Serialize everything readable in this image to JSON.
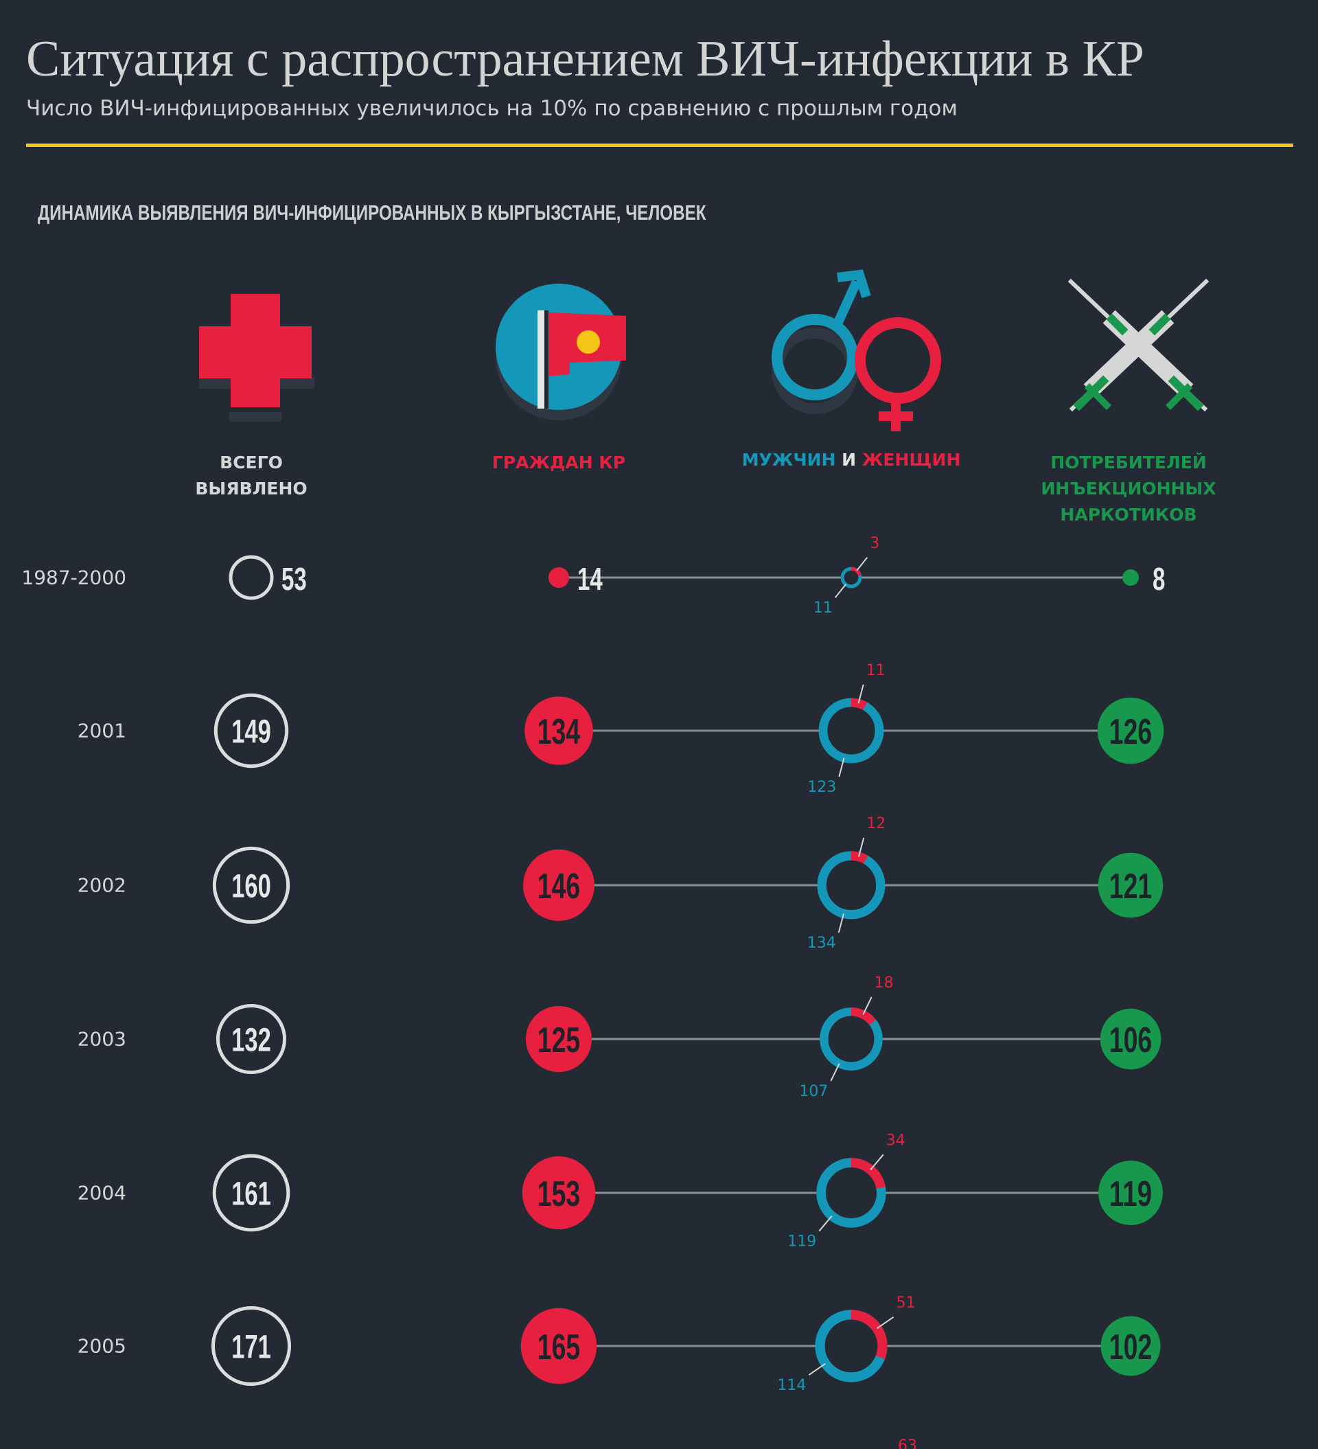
{
  "header": {
    "title": "Ситуация с распространением ВИЧ-инфекции в КР",
    "subtitle": "Число ВИЧ-инфицированных увеличилось на 10% по сравнению с прошлым годом"
  },
  "chart_data": {
    "type": "bubble-timeline",
    "title": "ДИНАМИКА ВЫЯВЛЕНИЯ ВИЧ-ИНФИЦИРОВАННЫХ В КЫРГЫЗСТАНЕ, ЧЕЛОВЕК",
    "columns": [
      {
        "key": "total",
        "label_lines": [
          "ВСЕГО",
          "ВЫЯВЛЕНО"
        ],
        "icon": "red-cross-icon",
        "color": "#d9d9d9"
      },
      {
        "key": "citizens",
        "label_lines": [
          "ГРАЖДАН КР"
        ],
        "icon": "kyrgyz-flag-icon",
        "color": "#e8203f"
      },
      {
        "key": "gender",
        "label_men": "МУЖЧИН",
        "label_and": "И",
        "label_women": "ЖЕНЩИН",
        "icon": "gender-symbols-icon"
      },
      {
        "key": "idu",
        "label_lines": [
          "ПОТРЕБИТЕЛЕЙ",
          "ИНЪЕКЦИОННЫХ",
          "НАРКОТИКОВ"
        ],
        "icon": "syringes-icon",
        "color": "#17984c"
      }
    ],
    "rows": [
      {
        "year": "1987-2000",
        "total": 53,
        "citizens": 14,
        "men": 11,
        "women": 3,
        "idu": 8
      },
      {
        "year": "2001",
        "total": 149,
        "citizens": 134,
        "men": 123,
        "women": 11,
        "idu": 126
      },
      {
        "year": "2002",
        "total": 160,
        "citizens": 146,
        "men": 134,
        "women": 12,
        "idu": 121
      },
      {
        "year": "2003",
        "total": 132,
        "citizens": 125,
        "men": 107,
        "women": 18,
        "idu": 106
      },
      {
        "year": "2004",
        "total": 161,
        "citizens": 153,
        "men": 119,
        "women": 34,
        "idu": 119
      },
      {
        "year": "2005",
        "total": 171,
        "citizens": 165,
        "men": 114,
        "women": 51,
        "idu": 102
      }
    ],
    "partial_next_row": {
      "women": 63
    }
  },
  "colors": {
    "background": "#232a33",
    "accent_rule": "#f2c31c",
    "red": "#e8203f",
    "blue": "#1497b8",
    "green": "#17984c",
    "text": "#d6d6d6"
  }
}
